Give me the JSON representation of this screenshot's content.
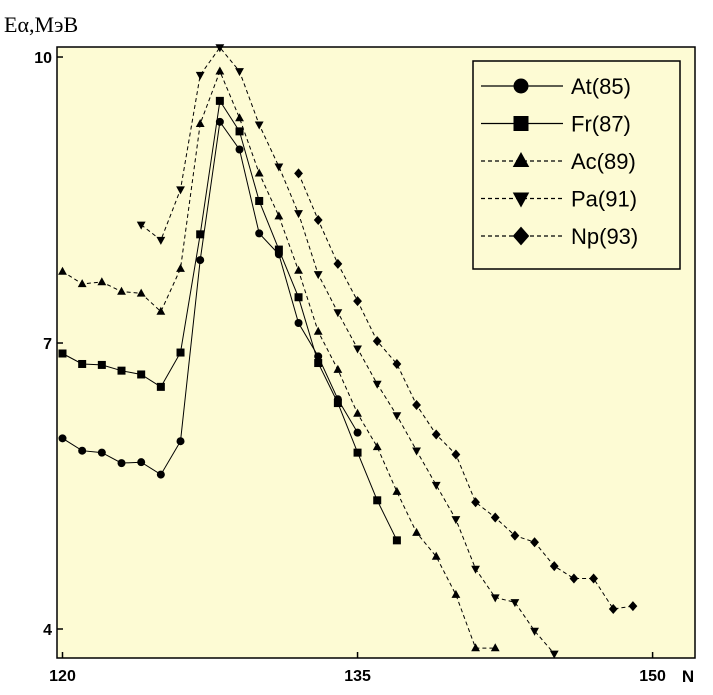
{
  "chart_data": {
    "type": "line",
    "title": "",
    "ylabel": "Eα,МэВ",
    "xlabel": "N",
    "xlim": [
      120,
      153
    ],
    "ylim": [
      3.7,
      10.1
    ],
    "xticks": [
      120,
      135,
      150
    ],
    "xtick_labels": [
      "120",
      "135",
      "150"
    ],
    "yticks": [
      4,
      7,
      10
    ],
    "ytick_labels": [
      "4",
      "7",
      "10"
    ],
    "grid": false,
    "legend": "top-right",
    "background": "#fdfbd4",
    "series": [
      {
        "name": "At(85)",
        "marker": "circle",
        "dash": "solid",
        "x": [
          120,
          121,
          122,
          123,
          124,
          125,
          126,
          127,
          128,
          129,
          130,
          131,
          132,
          133,
          134,
          135
        ],
        "y": [
          6.0,
          5.87,
          5.85,
          5.74,
          5.75,
          5.62,
          5.97,
          7.87,
          9.32,
          9.03,
          8.15,
          7.93,
          7.21,
          6.86,
          6.41,
          6.06
        ]
      },
      {
        "name": "Fr(87)",
        "marker": "square",
        "dash": "solid",
        "x": [
          120,
          121,
          122,
          123,
          124,
          125,
          126,
          127,
          128,
          129,
          130,
          131,
          132,
          133,
          134,
          135,
          136,
          137
        ],
        "y": [
          6.89,
          6.78,
          6.77,
          6.71,
          6.67,
          6.54,
          6.9,
          8.14,
          9.54,
          9.22,
          8.49,
          7.98,
          7.48,
          6.79,
          6.37,
          5.85,
          5.35,
          4.93
        ]
      },
      {
        "name": "Ac(89)",
        "marker": "triangle-up",
        "dash": "dashed",
        "x": [
          120,
          121,
          122,
          123,
          124,
          125,
          126,
          127,
          128,
          129,
          130,
          131,
          132,
          133,
          134,
          135,
          136,
          137,
          138,
          139,
          140,
          141,
          142
        ],
        "y": [
          7.75,
          7.62,
          7.64,
          7.54,
          7.52,
          7.33,
          7.78,
          9.3,
          9.85,
          9.36,
          8.78,
          8.33,
          7.76,
          7.12,
          6.72,
          6.26,
          5.91,
          5.44,
          5.01,
          4.76,
          4.36,
          3.8,
          3.8
        ]
      },
      {
        "name": "Pa(91)",
        "marker": "triangle-down",
        "dash": "dashed",
        "x": [
          124,
          125,
          126,
          127,
          128,
          129,
          130,
          131,
          132,
          133,
          134,
          135,
          136,
          137,
          138,
          139,
          140,
          141,
          142,
          143,
          144,
          145
        ],
        "y": [
          8.24,
          8.08,
          8.61,
          9.81,
          10.1,
          9.85,
          9.29,
          8.85,
          8.36,
          7.72,
          7.32,
          6.94,
          6.57,
          6.24,
          5.87,
          5.51,
          5.15,
          4.63,
          4.33,
          4.28,
          3.98,
          3.74
        ]
      },
      {
        "name": "Np(93)",
        "marker": "diamond",
        "dash": "dashed",
        "x": [
          132,
          133,
          134,
          135,
          136,
          137,
          138,
          139,
          140,
          141,
          142,
          143,
          144,
          145,
          146,
          147,
          148,
          149
        ],
        "y": [
          8.78,
          8.29,
          7.83,
          7.44,
          7.02,
          6.78,
          6.35,
          6.04,
          5.83,
          5.33,
          5.17,
          4.98,
          4.91,
          4.66,
          4.53,
          4.53,
          4.21,
          4.24
        ]
      }
    ]
  }
}
